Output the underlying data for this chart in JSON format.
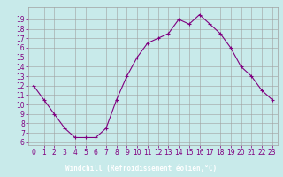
{
  "hours": [
    0,
    1,
    2,
    3,
    4,
    5,
    6,
    7,
    8,
    9,
    10,
    11,
    12,
    13,
    14,
    15,
    16,
    17,
    18,
    19,
    20,
    21,
    22,
    23
  ],
  "values": [
    12,
    10.5,
    9,
    7.5,
    6.5,
    6.5,
    6.5,
    7.5,
    10.5,
    13,
    15,
    16.5,
    17,
    17.5,
    19,
    18.5,
    19.5,
    18.5,
    17.5,
    16,
    14,
    13,
    11.5,
    10.5
  ],
  "line_color": "#800080",
  "marker": "+",
  "bg_color": "#c8eaea",
  "label_bar_color": "#800080",
  "label_text_color": "#ffffff",
  "grid_color": "#a0a0a0",
  "xlabel": "Windchill (Refroidissement éolien,°C)",
  "tick_color": "#800080",
  "ylim": [
    6,
    20
  ],
  "xlim": [
    -0.5,
    23.5
  ],
  "yticks": [
    6,
    7,
    8,
    9,
    10,
    11,
    12,
    13,
    14,
    15,
    16,
    17,
    18,
    19
  ],
  "xticks": [
    0,
    1,
    2,
    3,
    4,
    5,
    6,
    7,
    8,
    9,
    10,
    11,
    12,
    13,
    14,
    15,
    16,
    17,
    18,
    19,
    20,
    21,
    22,
    23
  ],
  "tick_fontsize": 5.5,
  "label_fontsize": 5.5
}
